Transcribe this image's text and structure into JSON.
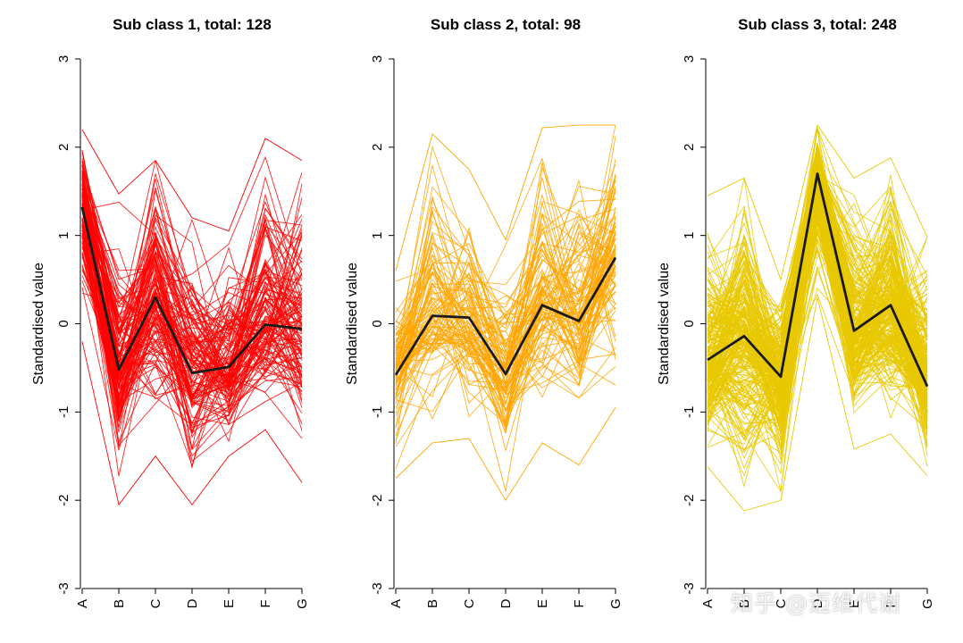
{
  "chart_data": [
    {
      "type": "line",
      "title": "Sub class 1, total: 128",
      "ylabel": "Standardised value",
      "categories": [
        "A",
        "B",
        "C",
        "D",
        "E",
        "F",
        "G"
      ],
      "ylim": [
        -3,
        3
      ],
      "yticks": [
        "-3",
        "-2",
        "-1",
        "0",
        "1",
        "2",
        "3"
      ],
      "color": "#ff0000",
      "n_lines": 128,
      "profile_envelope": {
        "min": [
          -0.2,
          -2.05,
          -1.5,
          -2.05,
          -1.5,
          -1.2,
          -1.8
        ],
        "max": [
          2.2,
          1.47,
          1.85,
          1.2,
          1.05,
          2.1,
          1.85
        ]
      },
      "center_profile": [
        1.32,
        -0.52,
        0.3,
        -0.56,
        -0.49,
        -0.01,
        -0.06
      ],
      "center_color": "#1a1a1a"
    },
    {
      "type": "line",
      "title": "Sub class 2, total: 98",
      "ylabel": "Standardised value",
      "categories": [
        "A",
        "B",
        "C",
        "D",
        "E",
        "F",
        "G"
      ],
      "ylim": [
        -3,
        3
      ],
      "yticks": [
        "-3",
        "-2",
        "-1",
        "0",
        "1",
        "2",
        "3"
      ],
      "color": "#ffa500",
      "n_lines": 98,
      "profile_envelope": {
        "min": [
          -1.75,
          -1.35,
          -1.3,
          -2.0,
          -1.35,
          -1.6,
          -0.95
        ],
        "max": [
          0.6,
          2.15,
          1.75,
          0.95,
          2.22,
          2.25,
          2.25
        ]
      },
      "center_profile": [
        -0.58,
        0.09,
        0.07,
        -0.57,
        0.21,
        0.03,
        0.75
      ],
      "center_color": "#1a1a1a"
    },
    {
      "type": "line",
      "title": "Sub class 3, total: 248",
      "ylabel": "Standardised value",
      "categories": [
        "A",
        "B",
        "C",
        "D",
        "E",
        "F",
        "G"
      ],
      "ylim": [
        -3,
        3
      ],
      "yticks": [
        "-3",
        "-2",
        "-1",
        "0",
        "1",
        "2",
        "3"
      ],
      "color": "#e8c800",
      "n_lines": 248,
      "profile_envelope": {
        "min": [
          -1.62,
          -2.12,
          -2.0,
          0.3,
          -1.42,
          -1.25,
          -1.72
        ],
        "max": [
          1.45,
          1.65,
          0.5,
          2.25,
          1.65,
          1.88,
          0.98
        ]
      },
      "center_profile": [
        -0.41,
        -0.14,
        -0.6,
        1.7,
        -0.08,
        0.21,
        -0.71
      ],
      "center_color": "#1a1a1a"
    }
  ],
  "watermark": "知乎 @迈维代谢"
}
